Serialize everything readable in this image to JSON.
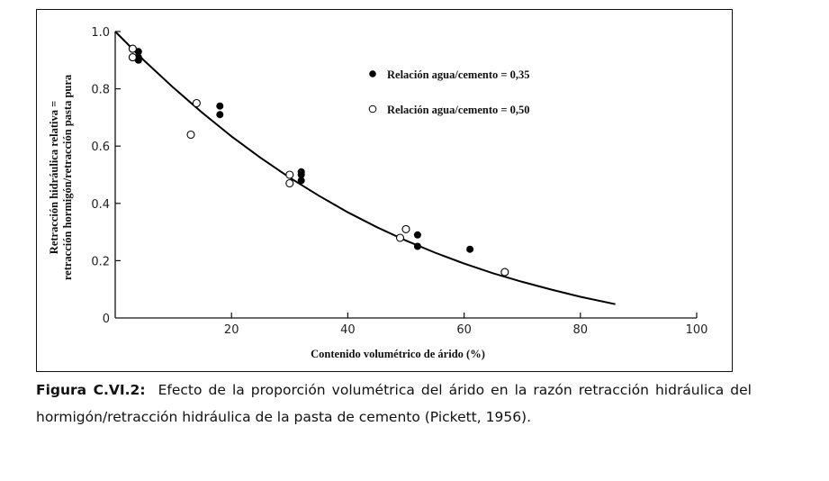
{
  "chart_data": {
    "type": "scatter",
    "xlabel": "Contenido volumétrico de árido (%)",
    "ylabel_line1": "Retracción hidráulica relativa =",
    "ylabel_line2": "retracción hormigón/retracción pasta pura",
    "xlim": [
      0,
      100
    ],
    "ylim": [
      0,
      1.0
    ],
    "x_ticks": [
      {
        "value": 20,
        "label": "20"
      },
      {
        "value": 40,
        "label": "40"
      },
      {
        "value": 60,
        "label": "60"
      },
      {
        "value": 80,
        "label": "80"
      },
      {
        "value": 100,
        "label": "100"
      }
    ],
    "y_ticks": [
      {
        "value": 0,
        "label": "0"
      },
      {
        "value": 0.2,
        "label": "0.2"
      },
      {
        "value": 0.4,
        "label": "0.4"
      },
      {
        "value": 0.6,
        "label": "0.6"
      },
      {
        "value": 0.8,
        "label": "0.8"
      },
      {
        "value": 1.0,
        "label": "1.0"
      }
    ],
    "series": [
      {
        "name": "Relación agua/cemento = 0,35",
        "marker": "filled",
        "color": "#000000",
        "x": [
          4,
          4,
          4,
          18,
          18,
          32,
          32,
          32,
          52,
          52,
          61
        ],
        "y": [
          0.93,
          0.91,
          0.9,
          0.74,
          0.71,
          0.51,
          0.5,
          0.48,
          0.29,
          0.25,
          0.24
        ]
      },
      {
        "name": "Relación agua/cemento = 0,50",
        "marker": "open",
        "color": "#000000",
        "x": [
          3,
          3,
          13,
          14,
          30,
          30,
          49,
          50,
          67
        ],
        "y": [
          0.94,
          0.91,
          0.64,
          0.75,
          0.5,
          0.47,
          0.28,
          0.31,
          0.16
        ]
      }
    ],
    "fit_curve": {
      "x": [
        0,
        5,
        10,
        15,
        20,
        25,
        30,
        35,
        40,
        45,
        50,
        55,
        60,
        65,
        70,
        75,
        80,
        86
      ],
      "y": [
        1.0,
        0.898,
        0.804,
        0.716,
        0.634,
        0.559,
        0.49,
        0.427,
        0.369,
        0.317,
        0.27,
        0.228,
        0.19,
        0.156,
        0.126,
        0.099,
        0.074,
        0.048
      ]
    },
    "legend_position": "top-right",
    "grid": false
  },
  "caption": {
    "label": "Figura C.VI.2:",
    "text": "Efecto de la proporción volumétrica del árido en la razón retracción hidráulica del hormigón/retracción hidráulica de la pasta de cemento (Pickett, 1956)."
  }
}
